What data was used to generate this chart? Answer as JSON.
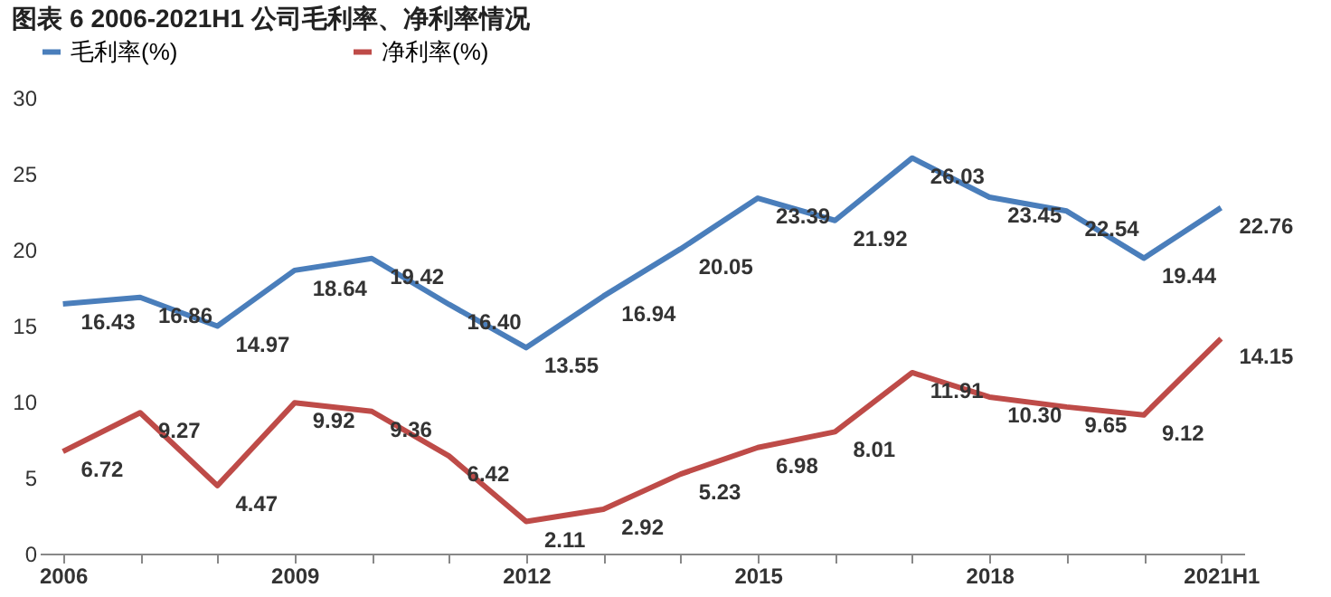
{
  "chart_data": {
    "type": "line",
    "title": "图表 6 2006-2021H1 公司毛利率、净利率情况",
    "categories": [
      "2006",
      null,
      null,
      "2009",
      null,
      null,
      "2012",
      null,
      null,
      "2015",
      null,
      null,
      "2018",
      null,
      null,
      "2021H1"
    ],
    "series": [
      {
        "name": "毛利率(%)",
        "color": "#4a7ebb",
        "values": [
          16.43,
          16.86,
          14.97,
          18.64,
          19.42,
          16.4,
          13.55,
          16.94,
          20.05,
          23.39,
          21.92,
          26.03,
          23.45,
          22.54,
          19.44,
          22.76
        ],
        "value_labels": [
          "16.43",
          "16.86",
          "14.97",
          "18.64",
          "19.42",
          "16.40",
          "13.55",
          "16.94",
          "20.05",
          "23.39",
          "21.92",
          "26.03",
          "23.45",
          "22.54",
          "19.44",
          "22.76"
        ]
      },
      {
        "name": "净利率(%)",
        "color": "#be4b48",
        "values": [
          6.72,
          9.27,
          4.47,
          9.92,
          9.36,
          6.42,
          2.11,
          2.92,
          5.23,
          6.98,
          8.01,
          11.91,
          10.3,
          9.65,
          9.12,
          14.15
        ],
        "value_labels": [
          "6.72",
          "9.27",
          "4.47",
          "9.92",
          "9.36",
          "6.42",
          "2.11",
          "2.92",
          "5.23",
          "6.98",
          "8.01",
          "11.91",
          "10.30",
          "9.65",
          "9.12",
          "14.15"
        ]
      }
    ],
    "ylim": [
      0,
      30
    ],
    "yticks": [
      0,
      5,
      10,
      15,
      20,
      25,
      30
    ],
    "grid": false,
    "legend": "top",
    "marker": "none",
    "line_style": "solid"
  }
}
